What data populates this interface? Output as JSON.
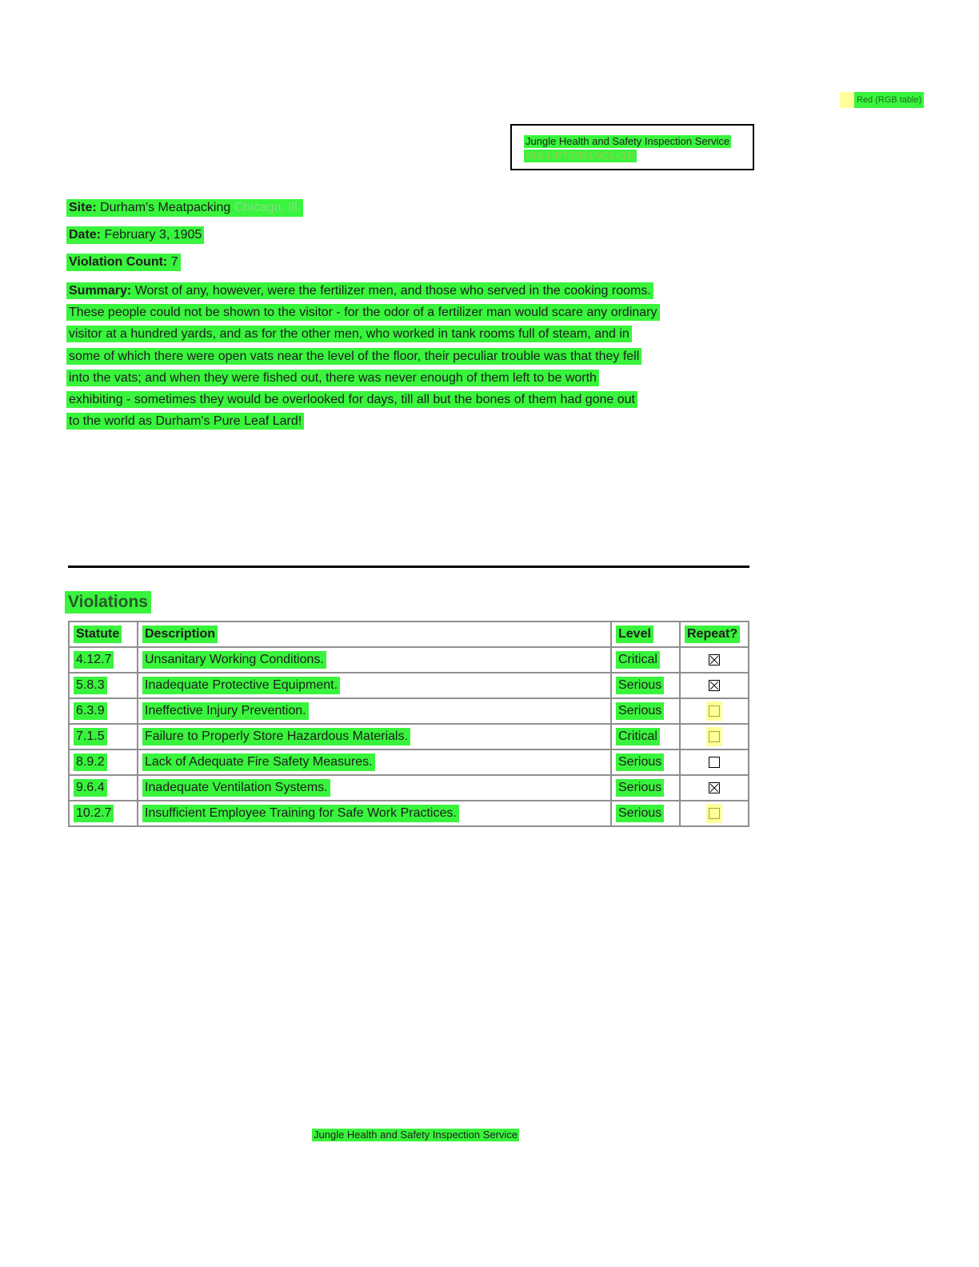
{
  "legend": {
    "label": "Red (RGB table)"
  },
  "header": {
    "organization": "Jungle Health and Safety Inspection Service",
    "code": "INS-UP70N51NCL41R"
  },
  "fields": {
    "site_label": "Site:",
    "site_value": "Durham's Meatpacking",
    "site_location": "Chicago, Ill.",
    "date_label": "Date:",
    "date_value": "February 3, 1905",
    "violation_count_label": "Violation Count:",
    "violation_count_value": "7",
    "summary_label": "Summary:",
    "summary_lines": [
      "Worst of any, however, were the fertilizer men, and those who served in the cooking rooms.",
      "These people could not be shown to the visitor - for the odor of a fertilizer man would scare any ordinary",
      "visitor at a hundred yards, and as for the other men, who worked in tank rooms full of steam, and in",
      "some of which there were open vats near the level of the floor, their peculiar trouble was that they fell",
      "into the vats; and when they were fished out, there was never enough of them left to be worth",
      "exhibiting - sometimes they would be overlooked for days, till all but the bones of them had gone out",
      "to the world as Durham's Pure Leaf Lard!"
    ]
  },
  "violations": {
    "title": "Violations",
    "columns": [
      "Statute",
      "Description",
      "Level",
      "Repeat?"
    ],
    "rows": [
      {
        "statute": "4.12.7",
        "description": "Unsanitary Working Conditions.",
        "level": "Critical",
        "repeat": true,
        "repeat_highlight": false
      },
      {
        "statute": "5.8.3",
        "description": "Inadequate Protective Equipment.",
        "level": "Serious",
        "repeat": true,
        "repeat_highlight": false
      },
      {
        "statute": "6.3.9",
        "description": "Ineffective Injury Prevention.",
        "level": "Serious",
        "repeat": false,
        "repeat_highlight": true
      },
      {
        "statute": "7.1.5",
        "description": "Failure to Properly Store Hazardous Materials.",
        "level": "Critical",
        "repeat": false,
        "repeat_highlight": true
      },
      {
        "statute": "8.9.2",
        "description": "Lack of Adequate Fire Safety Measures.",
        "level": "Serious",
        "repeat": false,
        "repeat_highlight": false
      },
      {
        "statute": "9.6.4",
        "description": "Inadequate Ventilation Systems.",
        "level": "Serious",
        "repeat": true,
        "repeat_highlight": false
      },
      {
        "statute": "10.2.7",
        "description": "Insufficient Employee Training for Safe Work Practices.",
        "level": "Serious",
        "repeat": false,
        "repeat_highlight": true
      }
    ]
  },
  "footer": {
    "text": "Jungle Health and Safety Inspection Service"
  },
  "colors": {
    "highlight_green": "#39f43c",
    "highlight_yellow": "#ffff9a"
  }
}
